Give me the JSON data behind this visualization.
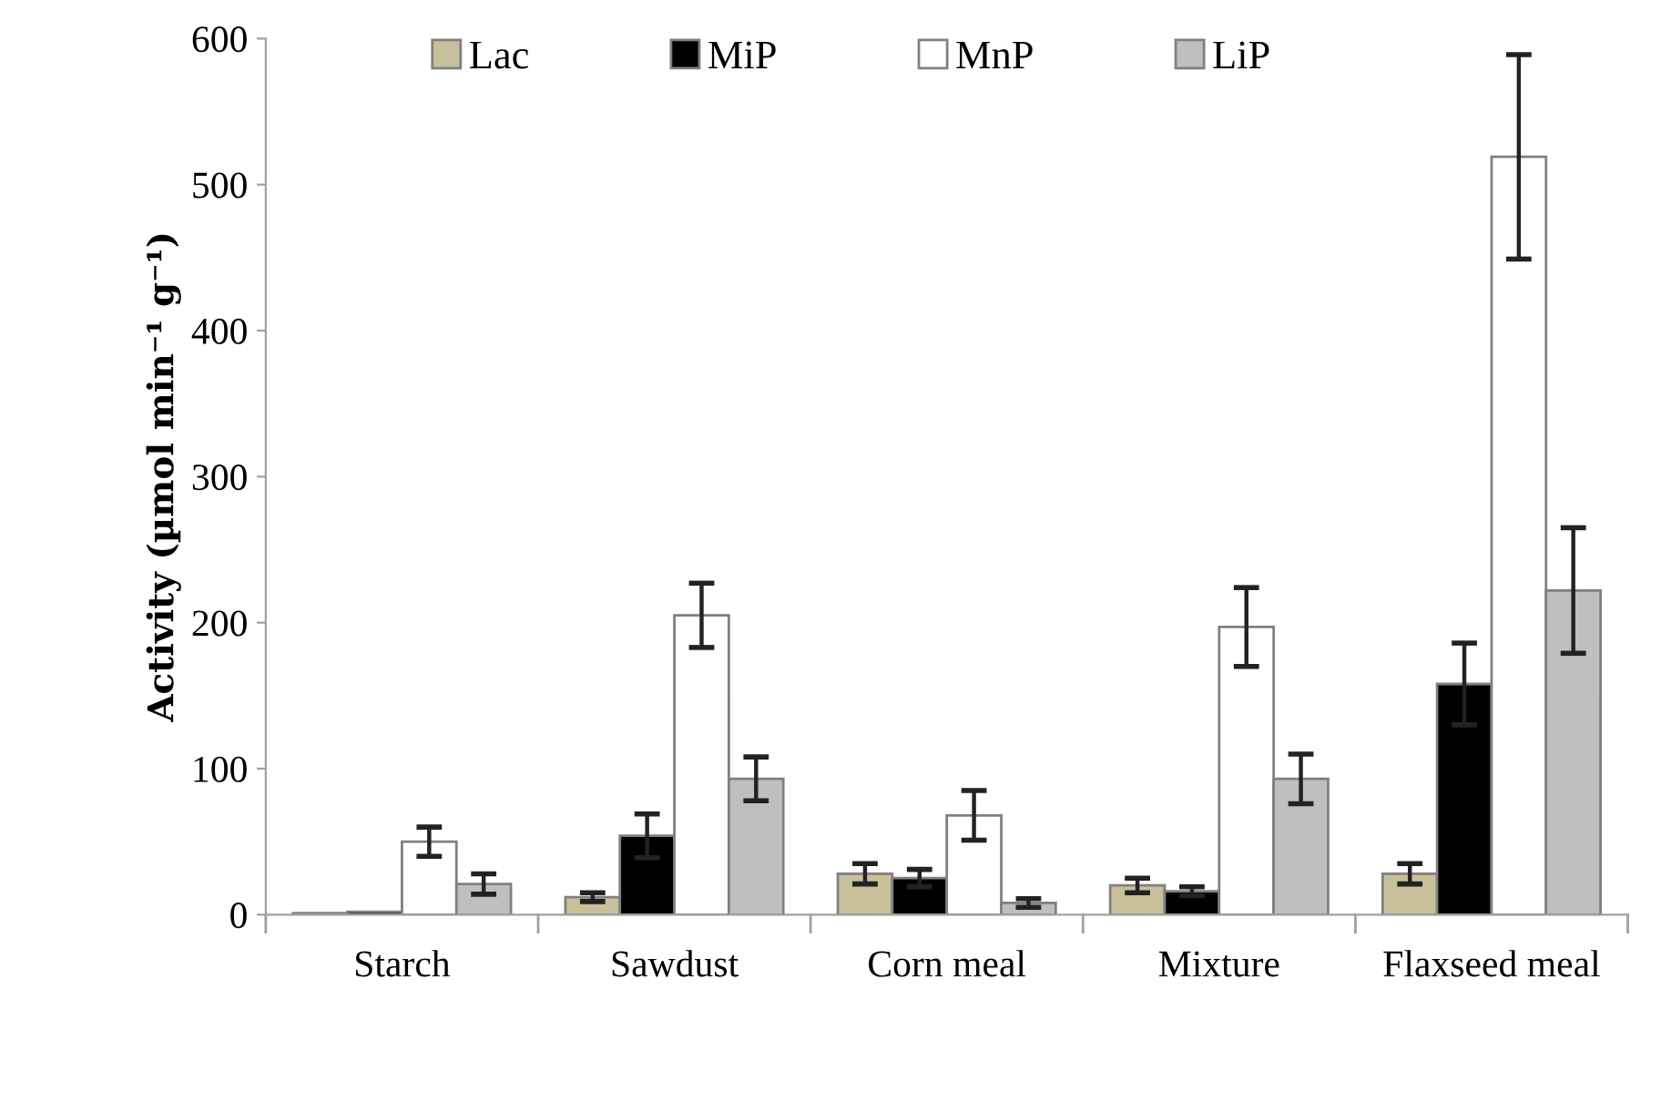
{
  "chart_data": {
    "type": "bar",
    "ylabel": "Activity (µmol min⁻¹ g⁻¹)",
    "categories": [
      "Starch",
      "Sawdust",
      "Corn meal",
      "Mixture",
      "Flaxseed meal"
    ],
    "series": [
      {
        "name": "Lac",
        "color": "#c8c09a",
        "values": [
          1,
          12,
          28,
          20,
          28
        ],
        "errors": [
          null,
          3,
          7,
          5,
          7
        ]
      },
      {
        "name": "MiP",
        "color": "#000000",
        "values": [
          2,
          54,
          25,
          16,
          158
        ],
        "errors": [
          null,
          15,
          6,
          3,
          28
        ]
      },
      {
        "name": "MnP",
        "color": "#ffffff",
        "values": [
          50,
          205,
          68,
          197,
          519
        ],
        "errors": [
          10,
          22,
          17,
          27,
          70
        ]
      },
      {
        "name": "LiP",
        "color": "#bfbfbf",
        "values": [
          21,
          93,
          8,
          93,
          222
        ],
        "errors": [
          7,
          15,
          3,
          17,
          43
        ]
      }
    ],
    "ylim": [
      0,
      600
    ],
    "yticks": [
      0,
      100,
      200,
      300,
      400,
      500,
      600
    ],
    "grid": false,
    "legend": "top"
  }
}
